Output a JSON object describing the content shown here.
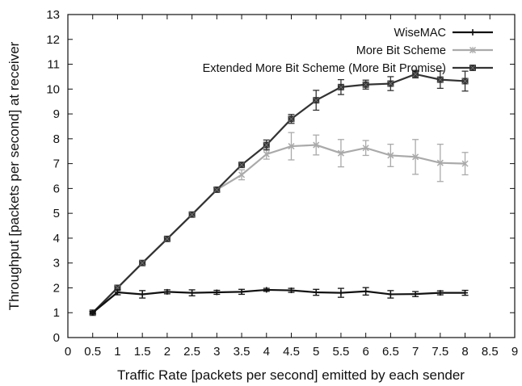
{
  "chart_data": {
    "type": "line",
    "title": "",
    "xlabel": "Traffic Rate [packets per second] emitted by each sender",
    "ylabel": "Throughput [packets per second] at receiver",
    "xlim": [
      0,
      9
    ],
    "ylim": [
      0,
      13
    ],
    "xticks": [
      "0",
      "0.5",
      "1",
      "1.5",
      "2",
      "2.5",
      "3",
      "3.5",
      "4",
      "4.5",
      "5",
      "5.5",
      "6",
      "6.5",
      "7",
      "7.5",
      "8",
      "8.5",
      "9"
    ],
    "yticks": [
      "0",
      "1",
      "2",
      "3",
      "4",
      "5",
      "6",
      "7",
      "8",
      "9",
      "10",
      "11",
      "12",
      "13"
    ],
    "grid": false,
    "legend_position": "top-right",
    "x": [
      0.5,
      1,
      1.5,
      2,
      2.5,
      3,
      3.5,
      4,
      4.5,
      5,
      5.5,
      6,
      6.5,
      7,
      7.5,
      8
    ],
    "series": [
      {
        "name": "WiseMAC",
        "color": "#111111",
        "marker": "plus",
        "values": [
          1.0,
          1.82,
          1.74,
          1.84,
          1.8,
          1.82,
          1.84,
          1.92,
          1.9,
          1.82,
          1.8,
          1.86,
          1.74,
          1.75,
          1.8,
          1.8
        ],
        "errors": [
          0.05,
          0.1,
          0.15,
          0.08,
          0.12,
          0.08,
          0.1,
          0.06,
          0.08,
          0.12,
          0.18,
          0.15,
          0.15,
          0.1,
          0.08,
          0.1
        ]
      },
      {
        "name": "More Bit Scheme",
        "color": "#aaaaaa",
        "marker": "x",
        "values": [
          1.0,
          2.0,
          3.0,
          3.97,
          4.95,
          5.95,
          6.55,
          7.38,
          7.7,
          7.75,
          7.42,
          7.63,
          7.33,
          7.27,
          7.03,
          7.0
        ],
        "errors": [
          0.05,
          0.08,
          0.06,
          0.06,
          0.06,
          0.08,
          0.2,
          0.2,
          0.55,
          0.4,
          0.55,
          0.3,
          0.45,
          0.7,
          0.75,
          0.45
        ]
      },
      {
        "name": "Extended More Bit Scheme (More Bit Promise)",
        "color": "#333333",
        "marker": "boxx",
        "values": [
          1.0,
          2.0,
          3.0,
          3.97,
          4.95,
          5.95,
          6.95,
          7.75,
          8.8,
          9.55,
          10.08,
          10.18,
          10.22,
          10.6,
          10.38,
          10.32
        ],
        "errors": [
          0.05,
          0.08,
          0.06,
          0.06,
          0.06,
          0.08,
          0.08,
          0.2,
          0.18,
          0.4,
          0.3,
          0.18,
          0.28,
          0.15,
          0.35,
          0.4
        ]
      }
    ]
  }
}
